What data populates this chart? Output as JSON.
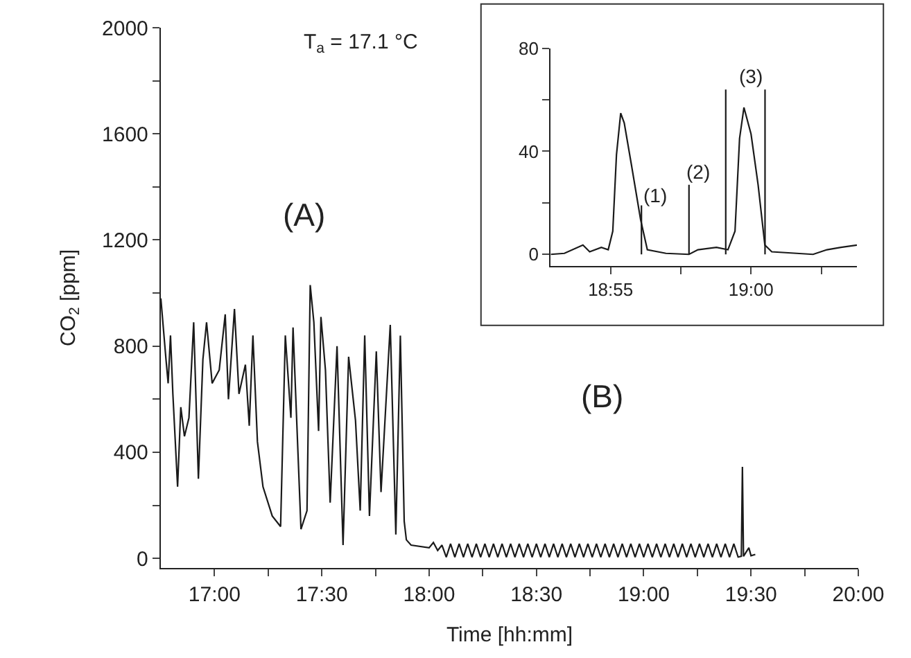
{
  "chart_data": [
    {
      "type": "line",
      "xlabel": "Time [hh:mm]",
      "ylabel": "CO$_{2}$ [ppm]",
      "annotations": [
        "T$_{a}$ = 17.1 °C",
        "(A)",
        "(B)"
      ],
      "xlim": [
        16.75,
        20.0
      ],
      "ylim": [
        -36,
        2000
      ],
      "xticks": [
        {
          "value": 17,
          "label": "17:00"
        },
        {
          "value": 17.25,
          "label": null
        },
        {
          "value": 17.5,
          "label": "17:30"
        },
        {
          "value": 17.75,
          "label": null
        },
        {
          "value": 18,
          "label": "18:00"
        },
        {
          "value": 18.25,
          "label": null
        },
        {
          "value": 18.5,
          "label": "18:30"
        },
        {
          "value": 18.75,
          "label": null
        },
        {
          "value": 19,
          "label": "19:00"
        },
        {
          "value": 19.25,
          "label": null
        },
        {
          "value": 19.5,
          "label": "19:30"
        },
        {
          "value": 19.75,
          "label": null
        },
        {
          "value": 20,
          "label": "20:00"
        }
      ],
      "yticks": [
        0,
        {
          "value": 200,
          "label": null
        },
        400,
        {
          "value": 600,
          "label": null
        },
        800,
        {
          "value": 1000,
          "label": null
        },
        1200,
        {
          "value": 1400,
          "label": null
        },
        1600,
        {
          "value": 1800,
          "label": null
        },
        2000
      ],
      "grid": false,
      "marker": "none",
      "line_style": "solid",
      "series": [
        {
          "color": "#1a1a1a",
          "x": [
            16.75,
            16.774,
            16.784,
            16.795,
            16.806,
            16.828,
            16.843,
            16.86,
            16.881,
            16.903,
            16.925,
            16.946,
            16.963,
            16.989,
            17.022,
            17.05,
            17.065,
            17.093,
            17.114,
            17.144,
            17.162,
            17.179,
            17.2,
            17.226,
            17.269,
            17.308,
            17.33,
            17.356,
            17.366,
            17.403,
            17.431,
            17.446,
            17.463,
            17.485,
            17.496,
            17.517,
            17.539,
            17.571,
            17.599,
            17.625,
            17.657,
            17.679,
            17.7,
            17.722,
            17.754,
            17.776,
            17.819,
            17.845,
            17.866,
            17.884,
            17.894,
            17.916,
            18.0,
            18.02,
            18.04,
            18.06,
            18.08,
            18.1,
            18.12,
            18.14,
            18.16,
            18.18,
            18.2,
            18.22,
            18.24,
            18.26,
            18.28,
            18.3,
            18.32,
            18.34,
            18.36,
            18.38,
            18.4,
            18.42,
            18.44,
            18.46,
            18.48,
            18.5,
            18.52,
            18.54,
            18.56,
            18.58,
            18.6,
            18.62,
            18.64,
            18.66,
            18.68,
            18.7,
            18.72,
            18.74,
            18.76,
            18.78,
            18.8,
            18.82,
            18.84,
            18.86,
            18.88,
            18.9,
            18.92,
            18.94,
            18.96,
            18.98,
            19.0,
            19.02,
            19.04,
            19.06,
            19.08,
            19.1,
            19.12,
            19.14,
            19.16,
            19.18,
            19.2,
            19.22,
            19.24,
            19.26,
            19.28,
            19.3,
            19.32,
            19.34,
            19.36,
            19.38,
            19.4,
            19.42,
            19.44,
            19.455,
            19.46,
            19.465,
            19.49,
            19.5,
            19.52
          ],
          "values": [
            980,
            750,
            660,
            840,
            620,
            270,
            570,
            460,
            530,
            890,
            300,
            750,
            890,
            660,
            710,
            920,
            600,
            940,
            620,
            730,
            500,
            840,
            440,
            270,
            160,
            120,
            840,
            530,
            870,
            110,
            180,
            1030,
            890,
            480,
            910,
            710,
            210,
            800,
            50,
            760,
            520,
            180,
            840,
            160,
            780,
            250,
            880,
            90,
            840,
            140,
            70,
            50,
            40,
            60,
            30,
            50,
            5,
            55,
            5,
            55,
            5,
            55,
            5,
            55,
            5,
            55,
            5,
            55,
            5,
            55,
            5,
            55,
            5,
            55,
            5,
            55,
            5,
            55,
            5,
            55,
            5,
            55,
            5,
            55,
            5,
            55,
            5,
            55,
            5,
            55,
            5,
            55,
            5,
            55,
            5,
            55,
            5,
            55,
            5,
            55,
            5,
            55,
            5,
            55,
            5,
            55,
            5,
            55,
            5,
            55,
            5,
            55,
            5,
            55,
            5,
            55,
            5,
            55,
            5,
            55,
            5,
            55,
            5,
            55,
            5,
            8,
            345,
            8,
            40,
            10,
            15
          ]
        }
      ]
    },
    {
      "type": "line",
      "annotations": [
        "(1)",
        "(2)",
        "(3)"
      ],
      "xlim": [
        18.8812,
        19.0628
      ],
      "ylim": [
        -4.5,
        80
      ],
      "xticks": [
        {
          "value": 18.9167,
          "label": "18:55"
        },
        {
          "value": 18.9583,
          "label": null
        },
        {
          "value": 19.0,
          "label": "19:00"
        },
        {
          "value": 19.0417,
          "label": null
        }
      ],
      "yticks": [
        0,
        {
          "value": 20,
          "label": null
        },
        40,
        {
          "value": 60,
          "label": null
        },
        80
      ],
      "grid": false,
      "marker": "none",
      "line_style": "solid",
      "series": [
        {
          "color": "#1a1a1a",
          "x": [
            18.8812,
            18.8893,
            18.9003,
            18.9043,
            18.9112,
            18.9153,
            18.918,
            18.9202,
            18.9227,
            18.9248,
            18.929,
            18.9345,
            18.9385,
            18.9495,
            18.9632,
            18.9685,
            18.9795,
            18.9863,
            18.9905,
            18.9932,
            18.9958,
            19.0,
            19.0042,
            19.0082,
            19.0123,
            19.0368,
            19.045,
            19.0533,
            19.0628
          ],
          "values": [
            0,
            0.4,
            3.6,
            1,
            2.7,
            1.8,
            9,
            38.7,
            54.8,
            51,
            35,
            13.5,
            1.8,
            0.4,
            0,
            1.8,
            2.7,
            1.8,
            9,
            45,
            57,
            46.7,
            27,
            3.6,
            1,
            0,
            1.8,
            2.7,
            3.6
          ]
        },
        {
          "color": "#1a1a1a",
          "x": [
            18.935,
            18.935
          ],
          "values": [
            0,
            19
          ]
        },
        {
          "color": "#1a1a1a",
          "x": [
            18.9632,
            18.9632
          ],
          "values": [
            0,
            27
          ]
        },
        {
          "color": "#1a1a1a",
          "x": [
            18.985,
            18.985
          ],
          "values": [
            0,
            64
          ]
        },
        {
          "color": "#1a1a1a",
          "x": [
            19.0083,
            19.0083
          ],
          "values": [
            0,
            64
          ]
        }
      ]
    }
  ]
}
